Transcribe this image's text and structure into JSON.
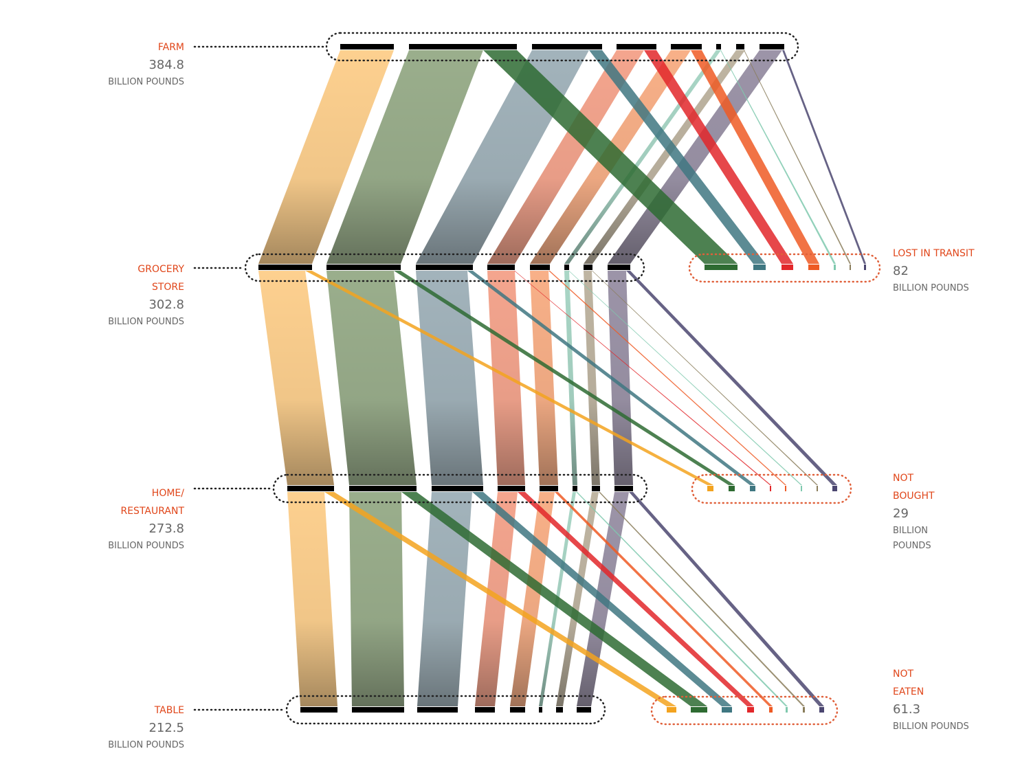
{
  "stages": [
    {
      "label": [
        "FARM"
      ],
      "value": 384.8,
      "unit": [
        "BILLION POUNDS"
      ]
    },
    {
      "label": [
        "GROCERY",
        "STORE"
      ],
      "value": 302.8,
      "unit": [
        "BILLION POUNDS"
      ]
    },
    {
      "label": [
        "HOME/",
        "RESTAURANT"
      ],
      "value": 273.8,
      "unit": [
        "BILLION POUNDS"
      ]
    },
    {
      "label": [
        "TABLE"
      ],
      "value": 212.5,
      "unit": [
        "BILLION POUNDS"
      ]
    }
  ],
  "losses": [
    {
      "label": [
        "LOST IN TRANSIT"
      ],
      "value": 82,
      "unit": [
        "BILLION POUNDS"
      ]
    },
    {
      "label": [
        "NOT",
        "BOUGHT"
      ],
      "value": 29,
      "unit": [
        "BILLION",
        "POUNDS"
      ]
    },
    {
      "label": [
        "NOT",
        "EATEN"
      ],
      "value": 61.3,
      "unit": [
        "BILLION POUNDS"
      ]
    }
  ]
}
